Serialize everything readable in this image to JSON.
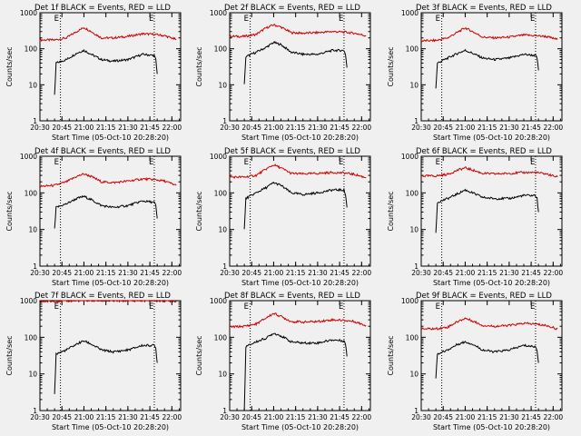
{
  "chart_data": [
    {
      "type": "line",
      "title": "Det 1f BLACK = Events, RED = LLD",
      "xlabel": "Start Time (05-Oct-10 20:28:20)",
      "ylabel": "Counts/sec",
      "y_scale": "log",
      "ylim": [
        1,
        1000
      ],
      "x_ticks": [
        "20:30",
        "20:45",
        "21:00",
        "21:15",
        "21:30",
        "21:45",
        "22:00"
      ],
      "y_ticks": [
        "1",
        "10",
        "100",
        "1000"
      ],
      "marker_labels": [
        "E",
        "E"
      ],
      "vlines": [
        "20:44",
        "21:48"
      ],
      "grid": false,
      "legend": "none",
      "series": [
        {
          "name": "LLD",
          "color": "#cc0000",
          "x": [
            "20:30",
            "20:40",
            "20:48",
            "20:55",
            "21:00",
            "21:05",
            "21:12",
            "21:20",
            "21:30",
            "21:40",
            "21:48",
            "21:55",
            "22:03"
          ],
          "y": [
            175,
            175,
            200,
            300,
            390,
            300,
            200,
            200,
            220,
            260,
            250,
            230,
            180
          ]
        },
        {
          "name": "Events",
          "color": "#000000",
          "x": [
            "20:40",
            "20:41",
            "20:48",
            "20:55",
            "21:00",
            "21:05",
            "21:12",
            "21:20",
            "21:30",
            "21:40",
            "21:48",
            "21:49",
            "21:50"
          ],
          "y": [
            5,
            40,
            50,
            75,
            90,
            70,
            50,
            45,
            50,
            70,
            65,
            50,
            20
          ]
        }
      ]
    },
    {
      "type": "line",
      "title": "Det 2f BLACK = Events, RED = LLD",
      "xlabel": "Start Time (05-Oct-10 20:28:20)",
      "ylabel": "Counts/sec",
      "y_scale": "log",
      "ylim": [
        1,
        1000
      ],
      "x_ticks": [
        "20:30",
        "20:45",
        "21:00",
        "21:15",
        "21:30",
        "21:45",
        "22:00"
      ],
      "y_ticks": [
        "1",
        "10",
        "100",
        "1000"
      ],
      "marker_labels": [
        "E",
        "E"
      ],
      "vlines": [
        "20:44",
        "21:48"
      ],
      "grid": false,
      "legend": "none",
      "series": [
        {
          "name": "LLD",
          "color": "#cc0000",
          "x": [
            "20:30",
            "20:40",
            "20:48",
            "20:55",
            "21:00",
            "21:05",
            "21:12",
            "21:20",
            "21:30",
            "21:40",
            "21:48",
            "21:55",
            "22:03"
          ],
          "y": [
            220,
            220,
            250,
            380,
            460,
            400,
            280,
            270,
            280,
            300,
            290,
            270,
            230
          ]
        },
        {
          "name": "Events",
          "color": "#000000",
          "x": [
            "20:40",
            "20:41",
            "20:48",
            "20:55",
            "21:00",
            "21:05",
            "21:12",
            "21:20",
            "21:30",
            "21:40",
            "21:48",
            "21:49",
            "21:50"
          ],
          "y": [
            10,
            60,
            80,
            110,
            150,
            130,
            80,
            70,
            70,
            90,
            90,
            70,
            30
          ]
        }
      ]
    },
    {
      "type": "line",
      "title": "Det 3f BLACK = Events, RED = LLD",
      "xlabel": "Start Time (05-Oct-10 20:28:20)",
      "ylabel": "Counts/sec",
      "y_scale": "log",
      "ylim": [
        1,
        1000
      ],
      "x_ticks": [
        "20:30",
        "20:45",
        "21:00",
        "21:15",
        "21:30",
        "21:45",
        "22:00"
      ],
      "y_ticks": [
        "1",
        "10",
        "100",
        "1000"
      ],
      "marker_labels": [
        "E",
        "E"
      ],
      "vlines": [
        "20:44",
        "21:48"
      ],
      "grid": false,
      "legend": "none",
      "series": [
        {
          "name": "LLD",
          "color": "#cc0000",
          "x": [
            "20:30",
            "20:40",
            "20:48",
            "20:55",
            "21:00",
            "21:05",
            "21:12",
            "21:20",
            "21:30",
            "21:40",
            "21:48",
            "21:55",
            "22:03"
          ],
          "y": [
            165,
            170,
            200,
            290,
            380,
            300,
            210,
            200,
            210,
            240,
            230,
            220,
            180
          ]
        },
        {
          "name": "Events",
          "color": "#000000",
          "x": [
            "20:40",
            "20:41",
            "20:48",
            "20:55",
            "21:00",
            "21:05",
            "21:12",
            "21:20",
            "21:30",
            "21:40",
            "21:48",
            "21:49",
            "21:50"
          ],
          "y": [
            8,
            40,
            55,
            75,
            90,
            75,
            55,
            50,
            55,
            70,
            65,
            55,
            25
          ]
        }
      ]
    },
    {
      "type": "line",
      "title": "Det 4f BLACK = Events, RED = LLD",
      "xlabel": "Start Time (05-Oct-10 20:28:20)",
      "ylabel": "Counts/sec",
      "y_scale": "log",
      "ylim": [
        1,
        1000
      ],
      "x_ticks": [
        "20:30",
        "20:45",
        "21:00",
        "21:15",
        "21:30",
        "21:45",
        "22:00"
      ],
      "y_ticks": [
        "1",
        "10",
        "100",
        "1000"
      ],
      "marker_labels": [
        "E",
        "E"
      ],
      "vlines": [
        "20:44",
        "21:48"
      ],
      "grid": false,
      "legend": "none",
      "series": [
        {
          "name": "LLD",
          "color": "#cc0000",
          "x": [
            "20:30",
            "20:40",
            "20:48",
            "20:55",
            "21:00",
            "21:05",
            "21:12",
            "21:20",
            "21:30",
            "21:40",
            "21:48",
            "21:55",
            "22:03"
          ],
          "y": [
            150,
            160,
            200,
            280,
            330,
            280,
            200,
            190,
            210,
            240,
            230,
            210,
            160
          ]
        },
        {
          "name": "Events",
          "color": "#000000",
          "x": [
            "20:40",
            "20:41",
            "20:48",
            "20:55",
            "21:00",
            "21:05",
            "21:12",
            "21:20",
            "21:30",
            "21:40",
            "21:48",
            "21:49",
            "21:50"
          ],
          "y": [
            10,
            40,
            50,
            70,
            80,
            65,
            45,
            40,
            45,
            60,
            55,
            45,
            20
          ]
        }
      ]
    },
    {
      "type": "line",
      "title": "Det 5f BLACK = Events, RED = LLD",
      "xlabel": "Start Time (05-Oct-10 20:28:20)",
      "ylabel": "Counts/sec",
      "y_scale": "log",
      "ylim": [
        1,
        1000
      ],
      "x_ticks": [
        "20:30",
        "20:45",
        "21:00",
        "21:15",
        "21:30",
        "21:45",
        "22:00"
      ],
      "y_ticks": [
        "1",
        "10",
        "100",
        "1000"
      ],
      "marker_labels": [
        "E",
        "E"
      ],
      "vlines": [
        "20:44",
        "21:48"
      ],
      "grid": false,
      "legend": "none",
      "series": [
        {
          "name": "LLD",
          "color": "#cc0000",
          "x": [
            "20:30",
            "20:40",
            "20:48",
            "20:55",
            "21:00",
            "21:05",
            "21:12",
            "21:20",
            "21:30",
            "21:40",
            "21:48",
            "21:55",
            "22:03"
          ],
          "y": [
            270,
            270,
            300,
            450,
            580,
            480,
            340,
            330,
            340,
            360,
            350,
            320,
            260
          ]
        },
        {
          "name": "Events",
          "color": "#000000",
          "x": [
            "20:40",
            "20:41",
            "20:48",
            "20:55",
            "21:00",
            "21:05",
            "21:12",
            "21:20",
            "21:30",
            "21:40",
            "21:48",
            "21:49",
            "21:50"
          ],
          "y": [
            10,
            70,
            100,
            140,
            190,
            160,
            100,
            90,
            100,
            120,
            120,
            90,
            40
          ]
        }
      ]
    },
    {
      "type": "line",
      "title": "Det 6f BLACK = Events, RED = LLD",
      "xlabel": "Start Time (05-Oct-10 20:28:20)",
      "ylabel": "Counts/sec",
      "y_scale": "log",
      "ylim": [
        1,
        1000
      ],
      "x_ticks": [
        "20:30",
        "20:45",
        "21:00",
        "21:15",
        "21:30",
        "21:45",
        "22:00"
      ],
      "y_ticks": [
        "1",
        "10",
        "100",
        "1000"
      ],
      "marker_labels": [
        "E",
        "E"
      ],
      "vlines": [
        "20:44",
        "21:48"
      ],
      "grid": false,
      "legend": "none",
      "series": [
        {
          "name": "LLD",
          "color": "#cc0000",
          "x": [
            "20:30",
            "20:40",
            "20:48",
            "20:55",
            "21:00",
            "21:05",
            "21:12",
            "21:20",
            "21:30",
            "21:40",
            "21:48",
            "21:55",
            "22:03"
          ],
          "y": [
            290,
            290,
            320,
            420,
            480,
            420,
            340,
            330,
            340,
            360,
            360,
            330,
            270
          ]
        },
        {
          "name": "Events",
          "color": "#000000",
          "x": [
            "20:40",
            "20:41",
            "20:48",
            "20:55",
            "21:00",
            "21:05",
            "21:12",
            "21:20",
            "21:30",
            "21:40",
            "21:48",
            "21:49",
            "21:50"
          ],
          "y": [
            8,
            55,
            70,
            95,
            120,
            100,
            75,
            70,
            70,
            85,
            85,
            70,
            30
          ]
        }
      ]
    },
    {
      "type": "line",
      "title": "Det 7f BLACK = Events, RED = LLD",
      "xlabel": "Start Time (05-Oct-10 20:28:20)",
      "ylabel": "Counts/sec",
      "y_scale": "log",
      "ylim": [
        1,
        1000
      ],
      "x_ticks": [
        "20:30",
        "20:45",
        "21:00",
        "21:15",
        "21:30",
        "21:45",
        "22:00"
      ],
      "y_ticks": [
        "1",
        "10",
        "100",
        "1000"
      ],
      "marker_labels": [
        "E",
        "E"
      ],
      "vlines": [
        "20:44",
        "21:48"
      ],
      "grid": false,
      "legend": "none",
      "series": [
        {
          "name": "LLD",
          "color": "#cc0000",
          "x": [
            "20:30",
            "20:40",
            "20:48",
            "20:55",
            "21:00",
            "21:05",
            "21:12",
            "21:20",
            "21:30",
            "21:40",
            "21:48",
            "21:55",
            "22:03"
          ],
          "y": [
            950,
            960,
            980,
            990,
            1000,
            1000,
            990,
            980,
            990,
            1000,
            990,
            980,
            970
          ]
        },
        {
          "name": "Events",
          "color": "#000000",
          "x": [
            "20:40",
            "20:41",
            "20:48",
            "20:55",
            "21:00",
            "21:05",
            "21:12",
            "21:20",
            "21:30",
            "21:40",
            "21:48",
            "21:49",
            "21:50"
          ],
          "y": [
            3,
            35,
            45,
            65,
            80,
            65,
            45,
            40,
            45,
            60,
            60,
            50,
            20
          ]
        }
      ]
    },
    {
      "type": "line",
      "title": "Det 8f BLACK = Events, RED = LLD",
      "xlabel": "Start Time (05-Oct-10 20:28:20)",
      "ylabel": "Counts/sec",
      "y_scale": "log",
      "ylim": [
        1,
        1000
      ],
      "x_ticks": [
        "20:30",
        "20:45",
        "21:00",
        "21:15",
        "21:30",
        "21:45",
        "22:00"
      ],
      "y_ticks": [
        "1",
        "10",
        "100",
        "1000"
      ],
      "marker_labels": [
        "E",
        "E"
      ],
      "vlines": [
        "20:44",
        "21:48"
      ],
      "grid": false,
      "legend": "none",
      "series": [
        {
          "name": "LLD",
          "color": "#cc0000",
          "x": [
            "20:30",
            "20:40",
            "20:48",
            "20:55",
            "21:00",
            "21:05",
            "21:12",
            "21:20",
            "21:30",
            "21:40",
            "21:48",
            "21:55",
            "22:03"
          ],
          "y": [
            190,
            200,
            230,
            340,
            450,
            370,
            270,
            260,
            270,
            300,
            290,
            270,
            210
          ]
        },
        {
          "name": "Events",
          "color": "#000000",
          "x": [
            "20:40",
            "20:41",
            "20:48",
            "20:55",
            "21:00",
            "21:05",
            "21:12",
            "21:20",
            "21:30",
            "21:40",
            "21:48",
            "21:49",
            "21:50"
          ],
          "y": [
            1,
            55,
            75,
            95,
            130,
            110,
            75,
            70,
            70,
            85,
            80,
            65,
            30
          ]
        }
      ]
    },
    {
      "type": "line",
      "title": "Det 9f BLACK = Events, RED = LLD",
      "xlabel": "Start Time (05-Oct-10 20:28:20)",
      "ylabel": "Counts/sec",
      "y_scale": "log",
      "ylim": [
        1,
        1000
      ],
      "x_ticks": [
        "20:30",
        "20:45",
        "21:00",
        "21:15",
        "21:30",
        "21:45",
        "22:00"
      ],
      "y_ticks": [
        "1",
        "10",
        "100",
        "1000"
      ],
      "marker_labels": [
        "E",
        "E"
      ],
      "vlines": [
        "20:44",
        "21:48"
      ],
      "grid": false,
      "legend": "none",
      "series": [
        {
          "name": "LLD",
          "color": "#cc0000",
          "x": [
            "20:30",
            "20:40",
            "20:48",
            "20:55",
            "21:00",
            "21:05",
            "21:12",
            "21:20",
            "21:30",
            "21:40",
            "21:48",
            "21:55",
            "22:03"
          ],
          "y": [
            170,
            170,
            190,
            270,
            330,
            280,
            210,
            200,
            210,
            240,
            230,
            210,
            170
          ]
        },
        {
          "name": "Events",
          "color": "#000000",
          "x": [
            "20:40",
            "20:41",
            "20:48",
            "20:55",
            "21:00",
            "21:05",
            "21:12",
            "21:20",
            "21:30",
            "21:40",
            "21:48",
            "21:49",
            "21:50"
          ],
          "y": [
            8,
            35,
            45,
            65,
            75,
            65,
            45,
            40,
            45,
            60,
            55,
            45,
            20
          ]
        }
      ]
    }
  ]
}
